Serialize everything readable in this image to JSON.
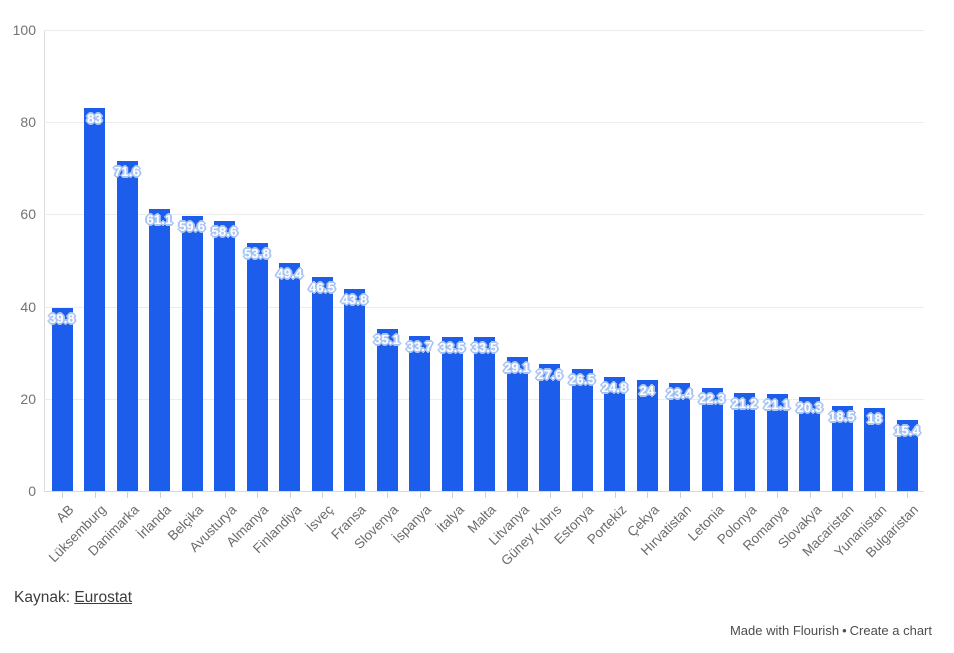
{
  "chart_data": {
    "type": "bar",
    "title": "",
    "xlabel": "",
    "ylabel": "",
    "categories": [
      "AB",
      "Lüksemburg",
      "Danimarka",
      "İrlanda",
      "Belçika",
      "Avusturya",
      "Almanya",
      "Finlandiya",
      "İsveç",
      "Fransa",
      "Slovenya",
      "İspanya",
      "İtalya",
      "Malta",
      "Litvanya",
      "Güney Kıbrıs",
      "Estonya",
      "Portekiz",
      "Çekya",
      "Hırvatistan",
      "Letonia",
      "Polonya",
      "Romanya",
      "Slovakya",
      "Macaristan",
      "Yunanistan",
      "Bulgaristan"
    ],
    "values": [
      39.8,
      83,
      71.6,
      61.1,
      59.6,
      58.6,
      53.8,
      49.4,
      46.5,
      43.8,
      35.1,
      33.7,
      33.5,
      33.5,
      29.1,
      27.6,
      26.5,
      24.8,
      24,
      23.4,
      22.3,
      21.2,
      21.1,
      20.3,
      18.5,
      18,
      15.4
    ],
    "ylim": [
      0,
      100
    ],
    "yticks": [
      0,
      20,
      40,
      60,
      80,
      100
    ],
    "grid": true,
    "legend": "none",
    "bar_color": "#1d5dec",
    "value_label_color": "#ffffff",
    "value_label_outline_color": "#a9c5f3"
  },
  "source": {
    "label": "Kaynak:",
    "link_text": "Eurostat"
  },
  "footer": {
    "made_with": "Made with Flourish",
    "separator": "•",
    "create": "Create a chart"
  }
}
